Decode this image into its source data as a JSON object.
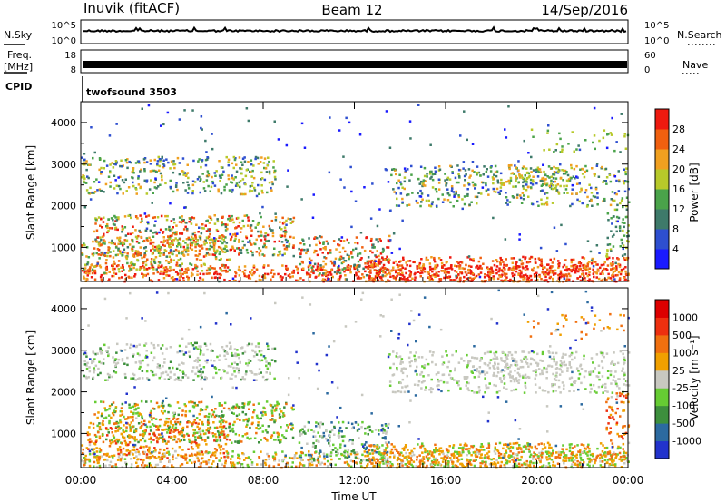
{
  "header": {
    "station": "Inuvik (fitACF)",
    "beam": "Beam 12",
    "date": "14/Sep/2016"
  },
  "strips": {
    "nsky_label": "N.Sky",
    "nsky_ticks": [
      "10^5",
      "10^0"
    ],
    "nsearch_label": "N.Search",
    "freq_label": "Freq.",
    "freq_unit": "[MHz]",
    "freq_ticks": [
      "18",
      "8"
    ],
    "nave_label": "Nave",
    "nave_ticks": [
      "60",
      "0"
    ],
    "cpid_label": "CPID",
    "cpid_value": "twofsound 3503"
  },
  "chart_data": [
    {
      "type": "heatmap",
      "quantity": "Power",
      "ylabel": "Slant Range [km]",
      "ylim": [
        180,
        4500
      ],
      "yticks": [
        1000,
        2000,
        3000,
        4000
      ],
      "xlim": [
        "00:00",
        "24:00"
      ],
      "colorbar_label": "Power [dB]",
      "colorbar_ticks": [
        "4",
        "8",
        "12",
        "16",
        "20",
        "24",
        "28"
      ],
      "colorbar_colors": [
        "#1a1aff",
        "#2e4fd0",
        "#3e7a6a",
        "#4aa34a",
        "#b7c92a",
        "#f0a020",
        "#f06010",
        "#ee1a10"
      ]
    },
    {
      "type": "heatmap",
      "quantity": "Velocity",
      "ylabel": "Slant Range [km]",
      "ylim": [
        180,
        4500
      ],
      "yticks": [
        1000,
        2000,
        3000,
        4000
      ],
      "xlim": [
        "00:00",
        "24:00"
      ],
      "xticks": [
        "00:00",
        "04:00",
        "08:00",
        "12:00",
        "16:00",
        "20:00",
        "00:00"
      ],
      "xlabel": "Time UT",
      "colorbar_label": "Velocity [m s⁻¹]",
      "colorbar_ticks": [
        "1000",
        "500",
        "100",
        "25",
        "-25",
        "-100",
        "-500",
        "-1000"
      ],
      "colorbar_colors": [
        "#2233cc",
        "#2c6aa0",
        "#3d8f3d",
        "#66cc33",
        "#c8c8c0",
        "#f0a000",
        "#f07010",
        "#ee3010",
        "#dd0000"
      ]
    }
  ]
}
